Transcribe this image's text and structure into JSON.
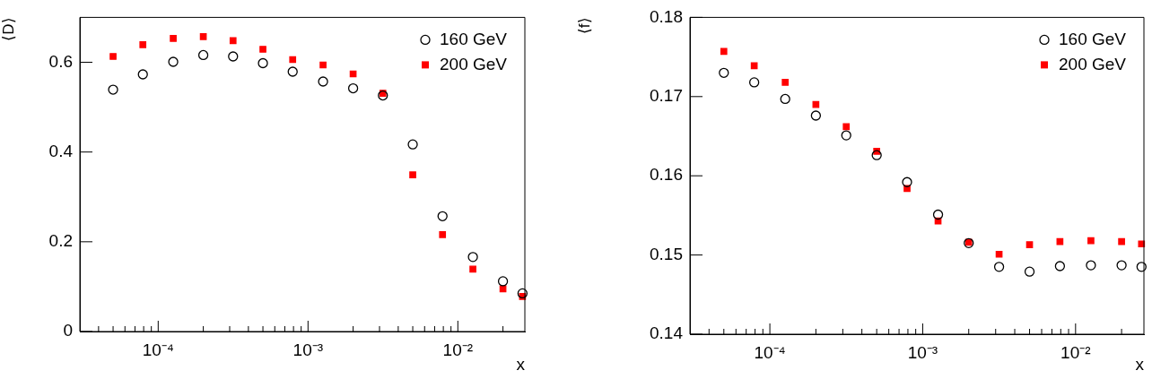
{
  "chart_data": [
    {
      "type": "scatter",
      "xlabel": "x",
      "ylabel": "⟨D⟩",
      "log": "x",
      "grid": false,
      "legend": "top right",
      "x": [
        5e-05,
        7.9e-05,
        0.000126,
        0.0002,
        0.000316,
        0.0005,
        0.00079,
        0.00126,
        0.002,
        0.00316,
        0.005,
        0.0079,
        0.0126,
        0.02,
        0.027
      ],
      "series": [
        {
          "name": "160 GeV",
          "color": "#000000",
          "marker": "circle",
          "values": [
            0.539,
            0.573,
            0.601,
            0.616,
            0.613,
            0.598,
            0.579,
            0.557,
            0.542,
            0.526,
            0.417,
            0.257,
            0.166,
            0.112,
            0.085
          ]
        },
        {
          "name": "200 GeV",
          "color": "#ff0000",
          "marker": "square",
          "values": [
            0.613,
            0.639,
            0.653,
            0.657,
            0.648,
            0.629,
            0.606,
            0.594,
            0.574,
            0.531,
            0.349,
            0.216,
            0.139,
            0.095,
            0.078
          ]
        }
      ],
      "xlim": [
        3e-05,
        0.028
      ],
      "xticks": [
        {
          "value": 4e-05,
          "label": null
        },
        {
          "value": 5e-05,
          "label": null
        },
        {
          "value": 6e-05,
          "label": null
        },
        {
          "value": 7e-05,
          "label": null
        },
        {
          "value": 8e-05,
          "label": null
        },
        {
          "value": 9e-05,
          "label": null
        },
        {
          "value": 0.0001,
          "label": "10⁻⁴"
        },
        {
          "value": 0.0002,
          "label": null
        },
        {
          "value": 0.0003,
          "label": null
        },
        {
          "value": 0.0004,
          "label": null
        },
        {
          "value": 0.0005,
          "label": null
        },
        {
          "value": 0.0006,
          "label": null
        },
        {
          "value": 0.0007,
          "label": null
        },
        {
          "value": 0.0008,
          "label": null
        },
        {
          "value": 0.0009,
          "label": null
        },
        {
          "value": 0.001,
          "label": "10⁻³"
        },
        {
          "value": 0.002,
          "label": null
        },
        {
          "value": 0.003,
          "label": null
        },
        {
          "value": 0.004,
          "label": null
        },
        {
          "value": 0.005,
          "label": null
        },
        {
          "value": 0.006,
          "label": null
        },
        {
          "value": 0.007,
          "label": null
        },
        {
          "value": 0.008,
          "label": null
        },
        {
          "value": 0.009,
          "label": null
        },
        {
          "value": 0.01,
          "label": "10⁻²"
        },
        {
          "value": 0.02,
          "label": null
        }
      ],
      "ylim": [
        0,
        0.7
      ],
      "yticks": [
        0,
        0.2,
        0.4,
        0.6
      ]
    },
    {
      "type": "scatter",
      "xlabel": "x",
      "ylabel": "⟨f⟩",
      "log": "x",
      "grid": false,
      "legend": "top right",
      "x": [
        5e-05,
        7.9e-05,
        0.000126,
        0.0002,
        0.000316,
        0.0005,
        0.00079,
        0.00126,
        0.002,
        0.00316,
        0.005,
        0.0079,
        0.0126,
        0.02,
        0.027
      ],
      "series": [
        {
          "name": "160 GeV",
          "color": "#000000",
          "marker": "circle",
          "values": [
            0.173,
            0.1718,
            0.1697,
            0.1676,
            0.1651,
            0.1626,
            0.1592,
            0.1551,
            0.1515,
            0.1485,
            0.1479,
            0.1486,
            0.1487,
            0.1487,
            0.1485
          ]
        },
        {
          "name": "200 GeV",
          "color": "#ff0000",
          "marker": "square",
          "values": [
            0.1757,
            0.1739,
            0.1718,
            0.169,
            0.1662,
            0.1631,
            0.1584,
            0.1543,
            0.1516,
            0.1501,
            0.1513,
            0.1517,
            0.1518,
            0.1517,
            0.1514
          ]
        }
      ],
      "xlim": [
        3e-05,
        0.028
      ],
      "xticks": [
        {
          "value": 4e-05,
          "label": null
        },
        {
          "value": 5e-05,
          "label": null
        },
        {
          "value": 6e-05,
          "label": null
        },
        {
          "value": 7e-05,
          "label": null
        },
        {
          "value": 8e-05,
          "label": null
        },
        {
          "value": 9e-05,
          "label": null
        },
        {
          "value": 0.0001,
          "label": "10⁻⁴"
        },
        {
          "value": 0.0002,
          "label": null
        },
        {
          "value": 0.0003,
          "label": null
        },
        {
          "value": 0.0004,
          "label": null
        },
        {
          "value": 0.0005,
          "label": null
        },
        {
          "value": 0.0006,
          "label": null
        },
        {
          "value": 0.0007,
          "label": null
        },
        {
          "value": 0.0008,
          "label": null
        },
        {
          "value": 0.0009,
          "label": null
        },
        {
          "value": 0.001,
          "label": "10⁻³"
        },
        {
          "value": 0.002,
          "label": null
        },
        {
          "value": 0.003,
          "label": null
        },
        {
          "value": 0.004,
          "label": null
        },
        {
          "value": 0.005,
          "label": null
        },
        {
          "value": 0.006,
          "label": null
        },
        {
          "value": 0.007,
          "label": null
        },
        {
          "value": 0.008,
          "label": null
        },
        {
          "value": 0.009,
          "label": null
        },
        {
          "value": 0.01,
          "label": "10⁻²"
        },
        {
          "value": 0.02,
          "label": null
        }
      ],
      "ylim": [
        0.14,
        0.18
      ],
      "yticks": [
        0.14,
        0.15,
        0.16,
        0.17,
        0.18
      ]
    }
  ]
}
